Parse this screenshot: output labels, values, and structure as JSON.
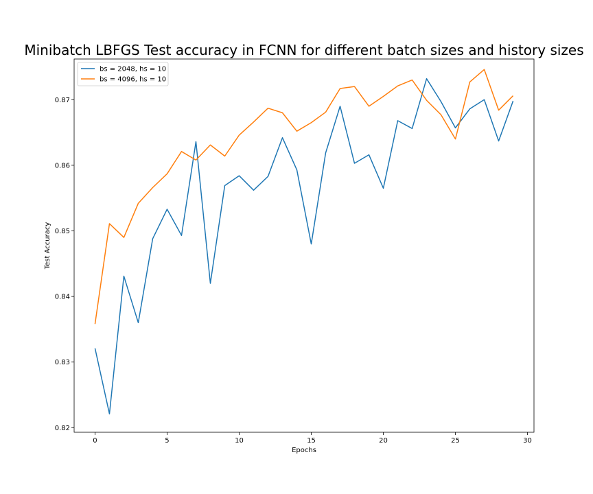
{
  "chart_data": {
    "type": "line",
    "title": "Minibatch LBFGS Test accuracy in FCNN for different batch sizes and history sizes",
    "xlabel": "Epochs",
    "ylabel": "Test Accuracy",
    "xlim": [
      -1.45,
      30.45
    ],
    "ylim": [
      0.8193,
      0.8762
    ],
    "xticks": [
      0,
      5,
      10,
      15,
      20,
      25,
      30
    ],
    "yticks": [
      0.82,
      0.83,
      0.84,
      0.85,
      0.86,
      0.87
    ],
    "ytick_labels": [
      "0.82",
      "0.83",
      "0.84",
      "0.85",
      "0.86",
      "0.87"
    ],
    "grid": false,
    "legend_position": "top-left",
    "x": [
      0,
      1,
      2,
      3,
      4,
      5,
      6,
      7,
      8,
      9,
      10,
      11,
      12,
      13,
      14,
      15,
      16,
      17,
      18,
      19,
      20,
      21,
      22,
      23,
      24,
      25,
      26,
      27,
      28,
      29
    ],
    "series": [
      {
        "name": "bs = 2048, hs = 10",
        "color": "#1f77b4",
        "values": [
          0.8321,
          0.8221,
          0.8431,
          0.836,
          0.8488,
          0.8533,
          0.8493,
          0.8636,
          0.842,
          0.8569,
          0.8584,
          0.8562,
          0.8583,
          0.8642,
          0.8593,
          0.848,
          0.8619,
          0.869,
          0.8603,
          0.8616,
          0.8565,
          0.8668,
          0.8656,
          0.8732,
          0.8697,
          0.8657,
          0.8686,
          0.87,
          0.8637,
          0.8698
        ]
      },
      {
        "name": "bs = 4096, hs = 10",
        "color": "#ff7f0e",
        "values": [
          0.8358,
          0.8511,
          0.849,
          0.8542,
          0.8566,
          0.8587,
          0.8621,
          0.8608,
          0.8631,
          0.8614,
          0.8646,
          0.8666,
          0.8687,
          0.868,
          0.8652,
          0.8665,
          0.8681,
          0.8717,
          0.872,
          0.869,
          0.8705,
          0.8721,
          0.873,
          0.8699,
          0.8677,
          0.864,
          0.8727,
          0.8746,
          0.8684,
          0.8706
        ]
      }
    ]
  }
}
